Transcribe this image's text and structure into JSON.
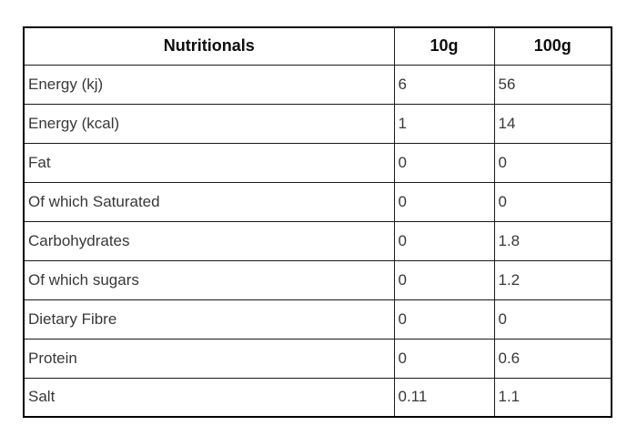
{
  "table": {
    "columns": [
      "Nutritionals",
      "10g",
      "100g"
    ],
    "rows": [
      {
        "label": "Energy (kj)",
        "per10g": "6",
        "per100g": "56"
      },
      {
        "label": "Energy (kcal)",
        "per10g": "1",
        "per100g": "14"
      },
      {
        "label": "Fat",
        "per10g": "0",
        "per100g": "0"
      },
      {
        "label": "Of which Saturated",
        "per10g": "0",
        "per100g": "0"
      },
      {
        "label": "Carbohydrates",
        "per10g": "0",
        "per100g": "1.8"
      },
      {
        "label": "Of which sugars",
        "per10g": "0",
        "per100g": "1.2"
      },
      {
        "label": "Dietary Fibre",
        "per10g": "0",
        "per100g": "0"
      },
      {
        "label": "Protein",
        "per10g": "0",
        "per100g": "0.6"
      },
      {
        "label": "Salt",
        "per10g": "0.11",
        "per100g": "1.1"
      }
    ],
    "colors": {
      "border": "#000000",
      "header_text": "#0d0d0d",
      "body_text": "#383838",
      "background": "#ffffff"
    }
  },
  "chart_data": {
    "type": "table",
    "title": "Nutritionals",
    "columns": [
      "Nutritionals",
      "10g",
      "100g"
    ],
    "rows": [
      [
        "Energy (kj)",
        "6",
        "56"
      ],
      [
        "Energy (kcal)",
        "1",
        "14"
      ],
      [
        "Fat",
        "0",
        "0"
      ],
      [
        "Of which Saturated",
        "0",
        "0"
      ],
      [
        "Carbohydrates",
        "0",
        "1.8"
      ],
      [
        "Of which sugars",
        "0",
        "1.2"
      ],
      [
        "Dietary Fibre",
        "0",
        "0"
      ],
      [
        "Protein",
        "0",
        "0.6"
      ],
      [
        "Salt",
        "0.11",
        "1.1"
      ]
    ]
  }
}
